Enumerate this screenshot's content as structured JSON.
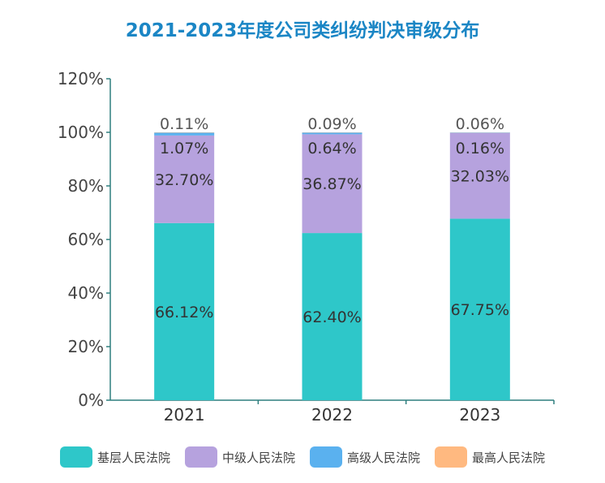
{
  "chart_data": {
    "type": "bar",
    "stacked": true,
    "title": "2021-2023年度公司类纠纷判决审级分布",
    "categories": [
      "2021",
      "2022",
      "2023"
    ],
    "ylim": [
      0,
      120
    ],
    "yticks": [
      "0%",
      "20%",
      "40%",
      "60%",
      "80%",
      "100%",
      "120%"
    ],
    "grid": false,
    "legend_position": "bottom",
    "series": [
      {
        "name": "基层人民法院",
        "color": "#2ec7c9",
        "values": [
          66.12,
          62.4,
          67.75
        ],
        "labels": [
          "66.12%",
          "62.40%",
          "67.75%"
        ]
      },
      {
        "name": "中级人民法院",
        "color": "#b6a2de",
        "values": [
          32.7,
          36.87,
          32.03
        ],
        "labels": [
          "32.70%",
          "36.87%",
          "32.03%"
        ]
      },
      {
        "name": "高级人民法院",
        "color": "#5ab1ef",
        "values": [
          1.07,
          0.64,
          0.16
        ],
        "labels": [
          "1.07%",
          "0.64%",
          "0.16%"
        ]
      },
      {
        "name": "最高人民法院",
        "color": "#ffb980",
        "values": [
          0.11,
          0.09,
          0.06
        ],
        "labels": [
          "0.11%",
          "0.09%",
          "0.06%"
        ]
      }
    ]
  }
}
